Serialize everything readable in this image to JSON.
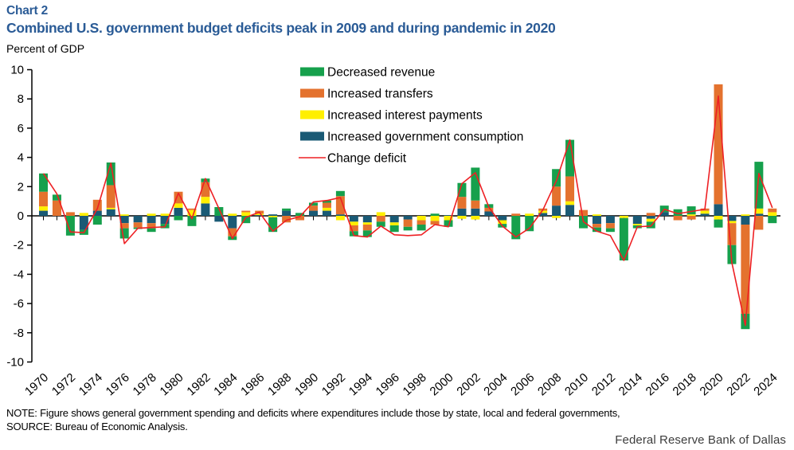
{
  "header": {
    "chart_label": "Chart 2",
    "title": "Combined U.S. government budget deficits peak in 2009 and during pandemic in 2020",
    "units": "Percent of GDP"
  },
  "footer": {
    "note": "NOTE: Figure shows general government spending and deficits where expenditures include those by state, local and federal governments,",
    "source": "SOURCE: Bureau of Economic Analysis.",
    "org": "Federal Reserve Bank of Dallas"
  },
  "chart_data": {
    "type": "bar",
    "subtype": "stacked-bar-with-line",
    "ylabel": "Percent of GDP",
    "ylim": [
      -10,
      10
    ],
    "ytick_step": 2,
    "xtick_every_years": 2,
    "grid": false,
    "legend_position": "top-center",
    "colors": {
      "revenue": "#16a04c",
      "transfers": "#e4722e",
      "interest": "#ffef00",
      "consumption": "#1a5a75",
      "line": "#ee2024",
      "axis": "#000000"
    },
    "years": [
      1970,
      1971,
      1972,
      1973,
      1974,
      1975,
      1976,
      1977,
      1978,
      1979,
      1980,
      1981,
      1982,
      1983,
      1984,
      1985,
      1986,
      1987,
      1988,
      1989,
      1990,
      1991,
      1992,
      1993,
      1994,
      1995,
      1996,
      1997,
      1998,
      1999,
      2000,
      2001,
      2002,
      2003,
      2004,
      2005,
      2006,
      2007,
      2008,
      2009,
      2010,
      2011,
      2012,
      2013,
      2014,
      2015,
      2016,
      2017,
      2018,
      2019,
      2020,
      2021,
      2022,
      2023,
      2024
    ],
    "series": [
      {
        "name": "Increased government consumption",
        "key": "consumption",
        "values": [
          0.35,
          0,
          0,
          -0.95,
          0.35,
          0.45,
          -0.5,
          -0.45,
          -0.5,
          -0.55,
          0.55,
          0,
          0.85,
          -0.4,
          -0.85,
          0,
          0.05,
          0.1,
          0.35,
          0,
          0.35,
          0.35,
          0.1,
          -0.4,
          -0.45,
          0,
          -0.45,
          -0.25,
          0,
          0,
          0.05,
          0.5,
          0.5,
          0.3,
          -0.3,
          0,
          0,
          0.2,
          0.7,
          0.75,
          0,
          -0.55,
          -0.5,
          0,
          -0.55,
          -0.2,
          0.25,
          0,
          0,
          0.15,
          0.8,
          -0.35,
          -0.6,
          0.15,
          0
        ]
      },
      {
        "name": "Increased interest payments",
        "key": "interest",
        "values": [
          0.3,
          0,
          0,
          0.2,
          0,
          0.1,
          0.1,
          0,
          0.15,
          0.15,
          0.3,
          0.4,
          0.45,
          0,
          0.15,
          0.25,
          0.1,
          -0.1,
          0,
          0,
          0,
          0.2,
          -0.3,
          -0.25,
          -0.15,
          0.25,
          -0.2,
          0,
          -0.3,
          -0.35,
          -0.3,
          -0.2,
          -0.25,
          0,
          -0.25,
          0,
          0.15,
          0.15,
          -0.15,
          0.25,
          0,
          0.1,
          0,
          -0.15,
          -0.1,
          -0.2,
          0,
          0,
          0.1,
          0.2,
          -0.25,
          -0.15,
          0.1,
          0.35,
          0.25
        ]
      },
      {
        "name": "Increased transfers",
        "key": "transfers",
        "values": [
          1.0,
          1.05,
          0.25,
          0,
          0.75,
          1.55,
          -0.35,
          -0.35,
          -0.35,
          0,
          0.8,
          0.1,
          1.0,
          0,
          -0.55,
          0.1,
          0.2,
          0,
          -0.45,
          -0.3,
          0.35,
          0.35,
          1.25,
          -0.4,
          -0.4,
          -0.4,
          0,
          -0.5,
          -0.3,
          -0.25,
          0,
          0.8,
          0.55,
          0.25,
          0,
          0.15,
          0,
          0.15,
          1.3,
          1.7,
          0.4,
          -0.25,
          -0.35,
          0,
          0,
          0.2,
          0,
          -0.3,
          -0.25,
          0.15,
          8.2,
          -1.5,
          -6.1,
          -0.95,
          0.25
        ]
      },
      {
        "name": "Decreased revenue",
        "key": "revenue",
        "values": [
          1.25,
          0.4,
          -1.35,
          -0.35,
          -0.6,
          1.55,
          -0.7,
          -0.1,
          -0.25,
          -0.3,
          -0.3,
          -0.7,
          0.25,
          0.6,
          -0.25,
          -0.5,
          0,
          -1.0,
          0.15,
          0.2,
          0.2,
          0.15,
          0.35,
          -0.35,
          -0.45,
          -0.35,
          -0.45,
          -0.25,
          -0.4,
          0.15,
          -0.45,
          0.95,
          2.25,
          0.25,
          -0.25,
          -1.6,
          -1.05,
          0,
          1.2,
          2.5,
          -0.85,
          -0.3,
          -0.25,
          -2.9,
          -0.2,
          -0.45,
          0.45,
          0.45,
          0.55,
          0,
          -0.55,
          -1.3,
          -1.05,
          3.2,
          -0.5
        ]
      }
    ],
    "line": {
      "name": "Change deficit",
      "key": "line",
      "values": [
        2.9,
        1.5,
        -1.1,
        -1.15,
        0.5,
        3.6,
        -1.9,
        -0.85,
        -0.8,
        -0.75,
        1.55,
        -0.2,
        2.55,
        0.5,
        -1.55,
        -0.1,
        0.25,
        -1.05,
        -0.3,
        -0.05,
        0.95,
        1.05,
        1.25,
        -1.35,
        -1.45,
        -0.7,
        -1.3,
        -1.35,
        -1.3,
        -0.6,
        -0.75,
        2.2,
        2.95,
        0.6,
        -0.7,
        -1.45,
        -0.85,
        0.4,
        2.4,
        5.2,
        -0.4,
        -1.05,
        -1.35,
        -3.05,
        -0.75,
        -0.7,
        0.45,
        0.15,
        0.3,
        0.45,
        8.2,
        -3.2,
        -7.5,
        2.9,
        0.55
      ]
    },
    "legend": [
      {
        "label": "Decreased revenue",
        "key": "revenue",
        "kind": "box"
      },
      {
        "label": "Increased transfers",
        "key": "transfers",
        "kind": "box"
      },
      {
        "label": "Increased interest payments",
        "key": "interest",
        "kind": "box"
      },
      {
        "label": "Increased government consumption",
        "key": "consumption",
        "kind": "box"
      },
      {
        "label": "Change deficit",
        "key": "line",
        "kind": "line"
      }
    ]
  }
}
